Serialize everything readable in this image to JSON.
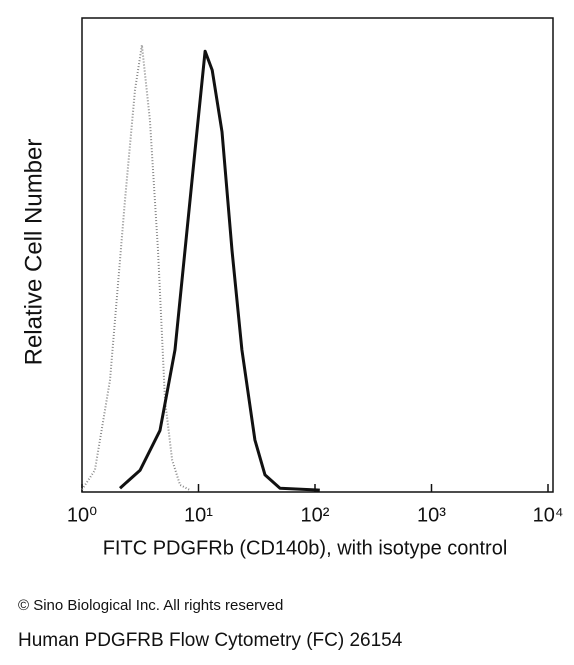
{
  "chart_data": {
    "type": "line",
    "xlabel": "FITC PDGFRb (CD140b), with isotype control",
    "ylabel": "Relative Cell Number",
    "xscale": "log",
    "xlim": [
      1,
      10000
    ],
    "xticks": [
      {
        "value": 1,
        "label": "10⁰"
      },
      {
        "value": 10,
        "label": "10¹"
      },
      {
        "value": 100,
        "label": "10²"
      },
      {
        "value": 1000,
        "label": "10³"
      },
      {
        "value": 10000,
        "label": "10⁴"
      }
    ],
    "ylim": [
      0,
      100
    ],
    "series": [
      {
        "color": "#888888",
        "line_style": "dotted",
        "x": [
          1,
          1.29,
          1.74,
          2.34,
          2.85,
          3.27,
          3.83,
          4.49,
          5.16,
          5.93,
          6.94,
          8.45
        ],
        "values": [
          0.5,
          4.6,
          23.6,
          61.6,
          84.8,
          94.3,
          78.5,
          51,
          19.4,
          6.8,
          1.5,
          0.4
        ]
      },
      {
        "color": "#111111",
        "line_style": "solid",
        "x": [
          2.12,
          3.15,
          4.67,
          6.28,
          7.66,
          9.33,
          11.4,
          13.1,
          15.9,
          19.4,
          23.6,
          30.5,
          37.2,
          50.1,
          110
        ],
        "values": [
          0.8,
          4.6,
          13,
          30,
          51,
          72,
          93,
          89,
          76,
          51,
          30,
          11,
          3.6,
          0.8,
          0.4
        ]
      }
    ]
  },
  "footer": {
    "copyright": "© Sino Biological Inc. All rights reserved",
    "caption": "Human PDGFRB Flow Cytometry (FC) 26154"
  }
}
